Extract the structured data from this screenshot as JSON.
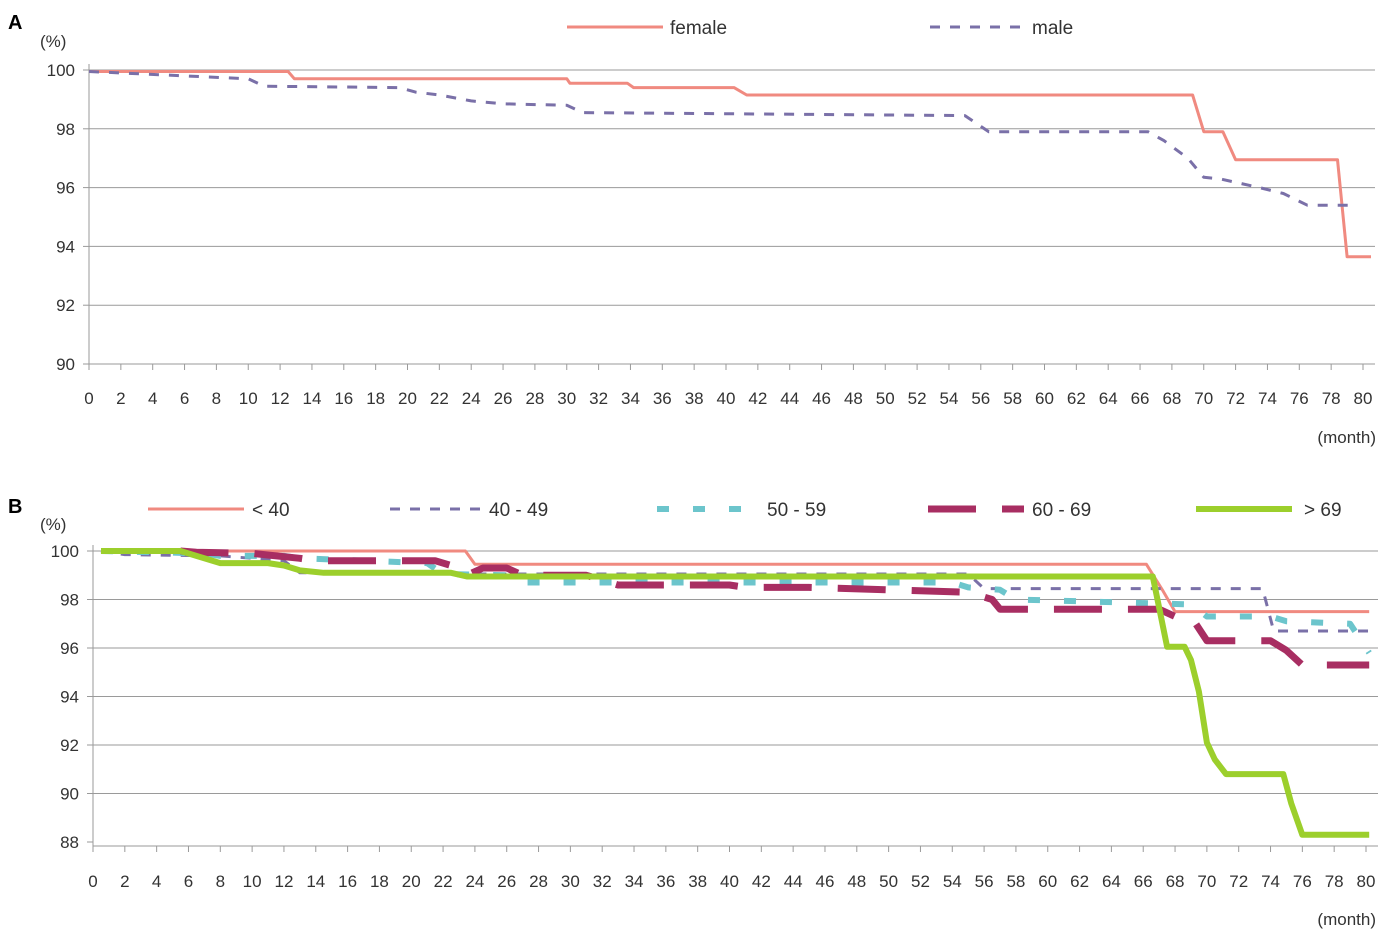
{
  "colors": {
    "female": "#f08a80",
    "male": "#7a70a8",
    "lt40": "#f08a80",
    "40_49": "#7a70a8",
    "50_59": "#6cc5cc",
    "60_69": "#a82e62",
    "gt69": "#9ccf2c",
    "grid": "#9a9a9a",
    "axis": "#9a9a9a"
  },
  "chart_data": [
    {
      "panel": "A",
      "type": "line",
      "line_shape": "step",
      "ylabel": "(%)",
      "xlabel": "(month)",
      "xlim": [
        0,
        80
      ],
      "ylim": [
        90,
        100
      ],
      "yticks": [
        90,
        92,
        94,
        96,
        98,
        100
      ],
      "xticks": [
        0,
        2,
        4,
        6,
        8,
        10,
        12,
        14,
        16,
        18,
        20,
        22,
        24,
        26,
        28,
        30,
        32,
        34,
        36,
        38,
        40,
        42,
        44,
        46,
        48,
        50,
        52,
        54,
        56,
        58,
        60,
        62,
        64,
        66,
        68,
        70,
        72,
        74,
        76,
        78,
        80
      ],
      "grid": true,
      "legend_position": "top-center",
      "series": [
        {
          "name": "female",
          "key": "female",
          "style": "solid",
          "x": [
            0,
            12.5,
            12.9,
            30,
            30.2,
            33.8,
            34.2,
            40.5,
            41.3,
            69.3,
            70,
            71.2,
            72,
            78.4,
            79,
            80.5
          ],
          "y": [
            99.95,
            99.95,
            99.7,
            99.7,
            99.55,
            99.55,
            99.4,
            99.4,
            99.15,
            99.15,
            97.9,
            97.9,
            96.95,
            96.95,
            93.65,
            93.65
          ]
        },
        {
          "name": "male",
          "key": "male",
          "style": "dashed",
          "x": [
            0,
            10,
            11,
            19.5,
            20.5,
            22,
            24,
            26,
            30,
            31,
            55,
            56.5,
            66.5,
            67.5,
            69,
            70,
            71,
            73.5,
            75,
            76.5,
            79.5
          ],
          "y": [
            99.95,
            99.7,
            99.45,
            99.4,
            99.25,
            99.15,
            98.95,
            98.85,
            98.8,
            98.55,
            98.45,
            97.9,
            97.9,
            97.6,
            97.0,
            96.35,
            96.3,
            96.0,
            95.8,
            95.4,
            95.4
          ]
        }
      ]
    },
    {
      "panel": "B",
      "type": "line",
      "line_shape": "step",
      "ylabel": "(%)",
      "xlabel": "(month)",
      "xlim": [
        0,
        80
      ],
      "ylim": [
        88,
        100
      ],
      "yticks": [
        88,
        90,
        92,
        94,
        96,
        98,
        100
      ],
      "xticks": [
        0,
        2,
        4,
        6,
        8,
        10,
        12,
        14,
        16,
        18,
        20,
        22,
        24,
        26,
        28,
        30,
        32,
        34,
        36,
        38,
        40,
        42,
        44,
        46,
        48,
        50,
        52,
        54,
        56,
        58,
        60,
        62,
        64,
        66,
        68,
        70,
        72,
        74,
        76,
        78,
        80
      ],
      "grid": true,
      "legend_position": "top",
      "series": [
        {
          "name": "< 40",
          "key": "lt40",
          "style": "solid",
          "x": [
            0.5,
            23.4,
            24,
            66.2,
            67.2,
            68,
            80.2
          ],
          "y": [
            100,
            100,
            99.45,
            99.45,
            98.4,
            97.5,
            97.5
          ]
        },
        {
          "name": "40 - 49",
          "key": "40_49",
          "style": "dashed",
          "x": [
            0.5,
            2,
            8,
            12,
            13,
            22,
            23,
            55,
            56,
            73.5,
            74.2,
            80.2
          ],
          "y": [
            100,
            99.85,
            99.8,
            99.6,
            99.1,
            99.1,
            99.05,
            99.05,
            98.45,
            98.45,
            96.7,
            96.7
          ]
        },
        {
          "name": "50 - 59",
          "key": "50_59",
          "style": "dashed",
          "x": [
            0.5,
            7,
            8,
            12,
            13,
            21,
            22,
            26,
            27,
            54,
            55,
            57,
            58,
            69,
            70,
            74,
            75,
            79,
            80.2
          ],
          "y": [
            100,
            99.9,
            99.8,
            99.8,
            99.7,
            99.5,
            99.05,
            99.0,
            98.7,
            98.7,
            98.5,
            98.4,
            98.0,
            97.8,
            97.3,
            97.3,
            97.1,
            97.0,
            95.8
          ]
        },
        {
          "name": "60 - 69",
          "key": "60_69",
          "style": "dashed",
          "x": [
            5.5,
            6.5,
            10,
            13,
            14,
            21.5,
            22.5,
            23.5,
            24.5,
            26,
            27,
            31,
            32,
            33,
            40,
            41,
            45,
            55,
            56.5,
            57,
            67,
            68,
            69,
            70,
            74,
            75,
            76,
            80.2
          ],
          "y": [
            100,
            99.95,
            99.9,
            99.7,
            99.6,
            99.6,
            99.4,
            99.0,
            99.3,
            99.3,
            99.0,
            99.0,
            98.8,
            98.6,
            98.6,
            98.5,
            98.5,
            98.3,
            98.0,
            97.6,
            97.6,
            97.3,
            97.3,
            96.3,
            96.3,
            95.9,
            95.3,
            95.3
          ]
        },
        {
          "name": "> 69",
          "key": "gt69",
          "style": "solid",
          "x": [
            0.5,
            5.5,
            6.5,
            8,
            11,
            12,
            13,
            14.5,
            22.5,
            23.5,
            66.6,
            67.5,
            68.6,
            69,
            69.5,
            70,
            70.5,
            71.2,
            71.8,
            74.8,
            75.3,
            76,
            80.2
          ],
          "y": [
            100,
            100,
            99.8,
            99.5,
            99.5,
            99.4,
            99.2,
            99.1,
            99.1,
            98.95,
            98.95,
            96.05,
            96.05,
            95.5,
            94.2,
            92.1,
            91.4,
            90.8,
            90.8,
            90.8,
            89.6,
            88.3,
            88.3
          ]
        }
      ]
    }
  ]
}
